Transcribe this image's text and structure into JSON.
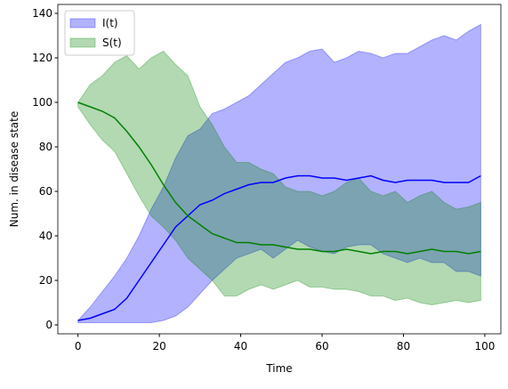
{
  "chart_data": {
    "type": "band-line",
    "xlabel": "Time",
    "ylabel": "Num. in disease state",
    "x": [
      0,
      3,
      6,
      9,
      12,
      15,
      18,
      21,
      24,
      27,
      30,
      33,
      36,
      39,
      42,
      45,
      48,
      51,
      54,
      57,
      60,
      63,
      66,
      69,
      72,
      75,
      78,
      81,
      84,
      87,
      90,
      93,
      96,
      99
    ],
    "series": [
      {
        "name": "I(t)",
        "color": "#0000ff",
        "band_color": "#0000ff",
        "values": [
          2,
          3,
          5,
          7,
          12,
          20,
          28,
          36,
          44,
          49,
          54,
          56,
          59,
          61,
          63,
          64,
          64,
          66,
          67,
          67,
          66,
          66,
          65,
          66,
          67,
          65,
          64,
          65,
          65,
          65,
          64,
          64,
          64,
          67
        ],
        "lower": [
          1,
          1,
          1,
          1,
          1,
          1,
          1,
          2,
          4,
          8,
          14,
          20,
          25,
          30,
          32,
          34,
          30,
          34,
          38,
          35,
          33,
          32,
          35,
          36,
          36,
          32,
          30,
          28,
          30,
          28,
          28,
          24,
          24,
          22
        ],
        "upper": [
          2,
          8,
          15,
          22,
          30,
          40,
          52,
          62,
          75,
          85,
          88,
          95,
          97,
          100,
          103,
          108,
          113,
          118,
          120,
          123,
          124,
          118,
          120,
          123,
          122,
          120,
          122,
          122,
          125,
          128,
          130,
          128,
          132,
          135
        ]
      },
      {
        "name": "S(t)",
        "color": "#008000",
        "band_color": "#008000",
        "values": [
          100,
          98,
          96,
          93,
          87,
          80,
          72,
          63,
          55,
          49,
          45,
          41,
          39,
          37,
          37,
          36,
          36,
          35,
          34,
          34,
          33,
          33,
          34,
          33,
          32,
          33,
          33,
          32,
          33,
          34,
          33,
          33,
          32,
          33
        ],
        "lower": [
          98,
          90,
          83,
          78,
          68,
          58,
          49,
          44,
          38,
          30,
          25,
          20,
          13,
          13,
          16,
          18,
          16,
          18,
          20,
          17,
          17,
          16,
          16,
          15,
          13,
          13,
          11,
          12,
          10,
          9,
          10,
          11,
          10,
          11
        ],
        "upper": [
          100,
          108,
          112,
          118,
          121,
          115,
          120,
          123,
          117,
          112,
          98,
          90,
          80,
          73,
          73,
          70,
          68,
          62,
          60,
          60,
          58,
          60,
          64,
          66,
          60,
          58,
          60,
          55,
          58,
          60,
          55,
          52,
          53,
          55
        ]
      }
    ],
    "xlim": [
      -4.95,
      103.95
    ],
    "ylim": [
      -4,
      144
    ],
    "xticks": [
      0,
      20,
      40,
      60,
      80,
      100
    ],
    "yticks": [
      0,
      20,
      40,
      60,
      80,
      100,
      120,
      140
    ],
    "legend": "upper-left"
  }
}
